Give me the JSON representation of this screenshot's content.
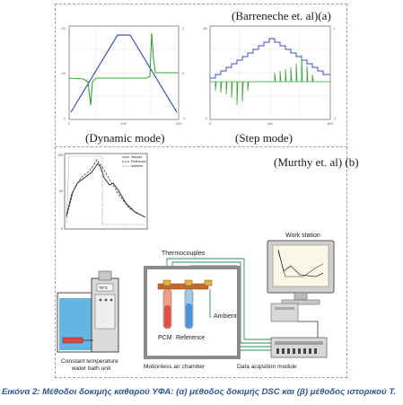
{
  "labels": {
    "panel_a": "(Barreneche et. al)(a)",
    "panel_b": "(Murthy et. al) (b)",
    "dynamic": "(Dynamic mode)",
    "step": "(Step mode)"
  },
  "apparatus": {
    "thermocouples": "Thermocouples",
    "work_station": "Work station",
    "pcm": "PCM",
    "reference": "Reference",
    "ambient": "Ambient",
    "bath_line1": "Constant temperature",
    "bath_line2": "water bath unit",
    "chamber": "Motionless air chamber",
    "module": "Data acqisition module",
    "display": "78°C"
  },
  "legend": {
    "sample": "Sample",
    "reference": "Reference",
    "ambient": "Ambient"
  },
  "caption": "Εικόνα 2: Μέθοδοι δοκιμής καθαρού ΥΦΑ: (α) μέθοδος δοκιμής DSC και (β) μέθοδος ιστορικού Τ.",
  "colors": {
    "frame": "#8aa0bf",
    "temperature_line": "#3b4fb5",
    "heat_flow_line": "#3aa03a",
    "caption": "#2f5597"
  }
}
